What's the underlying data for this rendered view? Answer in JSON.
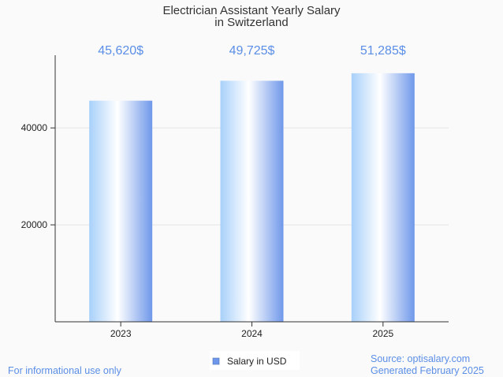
{
  "chart_data": {
    "type": "bar",
    "title": [
      "Electrician Assistant Yearly Salary",
      "in Switzerland"
    ],
    "categories": [
      "2023",
      "2024",
      "2025"
    ],
    "series": [
      {
        "name": "Salary in USD",
        "values": [
          45620,
          49725,
          51285
        ]
      }
    ],
    "value_labels": [
      "45,620$",
      "49,725$",
      "51,285$"
    ],
    "yticks": [
      20000,
      40000
    ],
    "ylim": [
      0,
      55000
    ],
    "grid": true,
    "legend": "bottom-center",
    "colors": {
      "bar_light": "#ffffff",
      "bar_mid": "#a8d0fa",
      "bar_dark": "#6f98ea",
      "label": "#5b8ee6"
    }
  },
  "footer": {
    "note": "For informational use only",
    "source": "Source: optisalary.com",
    "generated": "Generated February 2025"
  }
}
